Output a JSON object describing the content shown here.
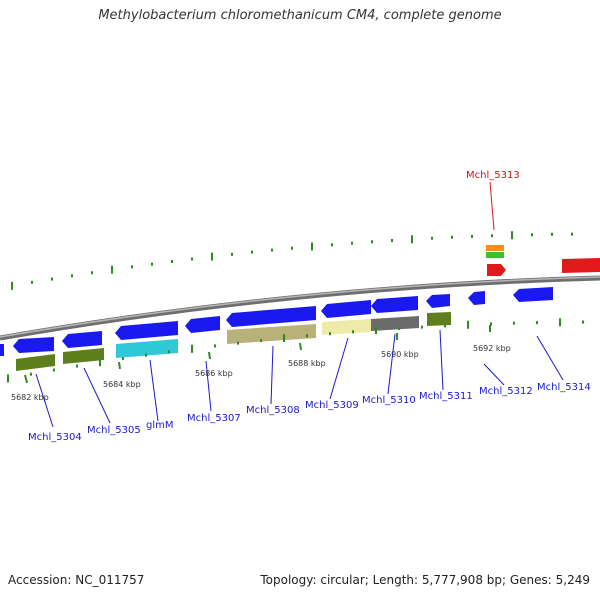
{
  "title": "Methylobacterium chloromethanicum CM4, complete genome",
  "footer": {
    "accession": "Accession: NC_011757",
    "summary": "Topology: circular; Length: 5,777,908 bp; Genes: 5,249"
  },
  "colors": {
    "forward_gene": "#1a1af0",
    "reverse_gene": "#1a1af0",
    "backbone": "#8a8a8a",
    "tick": "#2e8b1e",
    "label": "#1a1acc",
    "selected": "#e01a1a"
  },
  "tick_labels": [
    "5682 kbp",
    "5684 kbp",
    "5686 kbp",
    "5688 kbp",
    "5690 kbp",
    "5692 kbp"
  ],
  "gene_labels": [
    "Mchl_5304",
    "Mchl_5305",
    "glmM",
    "Mchl_5307",
    "Mchl_5308",
    "Mchl_5309",
    "Mchl_5310",
    "Mchl_5311",
    "Mchl_5312",
    "Mchl_5314"
  ],
  "selected_label": "Mchl_5313",
  "cog_colors": [
    "#5f7f1f",
    "#5f7f1f",
    "#2ec8d8",
    "#b8b27a",
    "#eeeaa8",
    "#6b6b6b",
    "#5f7f1f",
    "#ff8c1a",
    "#3bbf3b"
  ]
}
